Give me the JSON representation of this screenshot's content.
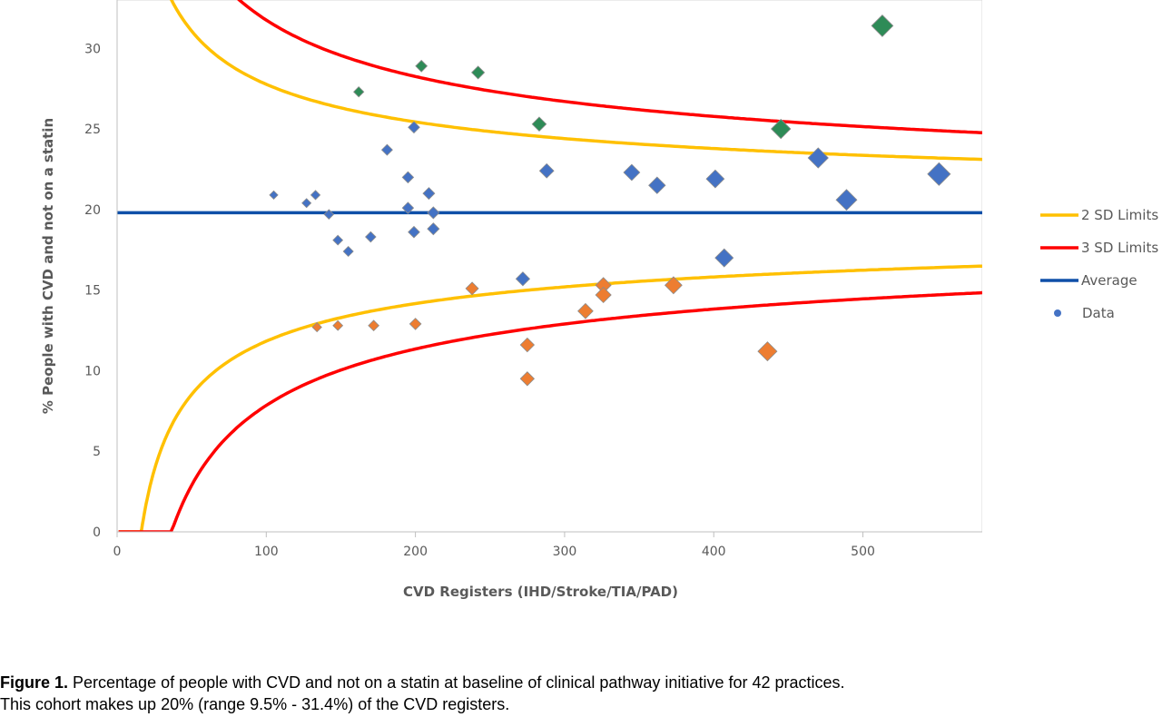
{
  "chart_data": {
    "type": "scatter",
    "xlabel": "CVD Registers (IHD/Stroke/TIA/PAD)",
    "ylabel": "% People with CVD and not on a statin",
    "xlim": [
      0,
      580
    ],
    "ylim": [
      0,
      33
    ],
    "x_ticks": [
      0,
      100,
      200,
      300,
      400,
      500
    ],
    "y_ticks": [
      0,
      5,
      10,
      15,
      20,
      25,
      30
    ],
    "grid": false,
    "legend_position": "right",
    "average": 19.8,
    "legend": [
      {
        "label": "2 SD Limits",
        "kind": "line",
        "color": "#ffc000"
      },
      {
        "label": "3 SD Limits",
        "kind": "line",
        "color": "#ff0000"
      },
      {
        "label": "Average",
        "kind": "line",
        "color": "#0f4fa8"
      },
      {
        "label": "Data",
        "kind": "marker",
        "color": "#4472c4"
      }
    ],
    "colors": {
      "above": "#2e8b57",
      "within": "#4472c4",
      "below": "#ed7d31",
      "sd2": "#ffc000",
      "sd3": "#ff0000",
      "average": "#0f4fa8"
    },
    "limit_curves": [
      {
        "name": "2 SD Limits",
        "color": "#ffc000",
        "sd": 2
      },
      {
        "name": "3 SD Limits",
        "color": "#ff0000",
        "sd": 3
      }
    ],
    "series": [
      {
        "group": "above",
        "points": [
          [
            162,
            27.3
          ],
          [
            204,
            28.9
          ],
          [
            242,
            28.5
          ],
          [
            283,
            25.3
          ],
          [
            445,
            25.0
          ],
          [
            513,
            31.4
          ]
        ]
      },
      {
        "group": "within",
        "points": [
          [
            105,
            20.9
          ],
          [
            127,
            20.4
          ],
          [
            133,
            20.9
          ],
          [
            142,
            19.7
          ],
          [
            148,
            18.1
          ],
          [
            155,
            17.4
          ],
          [
            170,
            18.3
          ],
          [
            181,
            23.7
          ],
          [
            195,
            22.0
          ],
          [
            195,
            20.1
          ],
          [
            199,
            25.1
          ],
          [
            199,
            18.6
          ],
          [
            209,
            21.0
          ],
          [
            212,
            19.8
          ],
          [
            212,
            18.8
          ],
          [
            272,
            15.7
          ],
          [
            288,
            22.4
          ],
          [
            345,
            22.3
          ],
          [
            362,
            21.5
          ],
          [
            401,
            21.9
          ],
          [
            407,
            17.0
          ],
          [
            470,
            23.2
          ],
          [
            489,
            20.6
          ],
          [
            551,
            22.2
          ]
        ]
      },
      {
        "group": "below",
        "points": [
          [
            134,
            12.7
          ],
          [
            148,
            12.8
          ],
          [
            172,
            12.8
          ],
          [
            200,
            12.9
          ],
          [
            238,
            15.1
          ],
          [
            275,
            11.6
          ],
          [
            275,
            9.5
          ],
          [
            314,
            13.7
          ],
          [
            326,
            15.3
          ],
          [
            326,
            14.7
          ],
          [
            373,
            15.3
          ],
          [
            436,
            11.2
          ]
        ]
      }
    ]
  },
  "caption": {
    "label": "Figure 1.",
    "line1": " Percentage of people with CVD and not on a statin at baseline of clinical pathway initiative for 42 practices.",
    "line2": "This cohort makes up 20% (range 9.5% - 31.4%) of the CVD registers."
  }
}
